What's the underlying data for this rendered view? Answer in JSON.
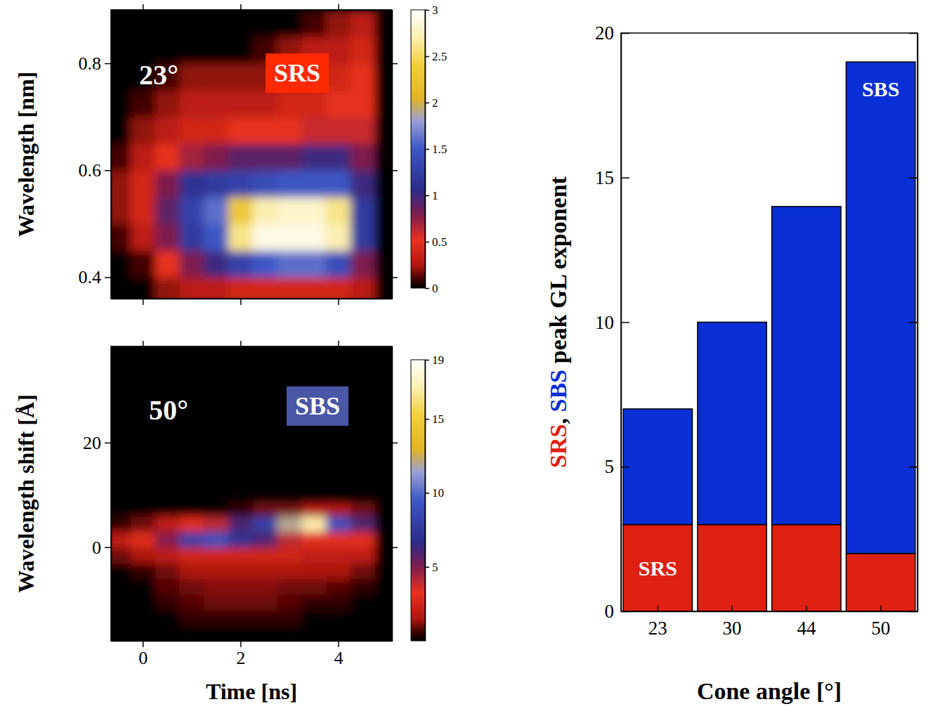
{
  "chart_data": [
    {
      "type": "heatmap",
      "annotations": [
        {
          "text": "23°"
        },
        {
          "text": "SRS",
          "color": "#ff2a00"
        }
      ],
      "y_label": "Wavelength [nm]",
      "x": [
        -0.5,
        0,
        0.5,
        1,
        1.5,
        2,
        2.5,
        3,
        3.5,
        4,
        4.5,
        5
      ],
      "y": [
        0.375,
        0.425,
        0.475,
        0.525,
        0.575,
        0.625,
        0.675,
        0.725,
        0.775,
        0.825,
        0.875
      ],
      "z": [
        [
          0,
          0,
          0.2,
          0.3,
          0.3,
          0.4,
          0.4,
          0.4,
          0.4,
          0.4,
          0.3,
          0
        ],
        [
          0,
          0.1,
          0.5,
          0.8,
          1.0,
          1.3,
          1.5,
          1.6,
          1.6,
          1.4,
          0.8,
          0
        ],
        [
          0.1,
          0.3,
          0.8,
          1.2,
          1.5,
          2.6,
          2.9,
          2.9,
          2.9,
          2.7,
          1.2,
          0
        ],
        [
          0.2,
          0.4,
          0.9,
          1.3,
          1.6,
          2.3,
          2.7,
          2.8,
          2.8,
          2.6,
          1.2,
          0
        ],
        [
          0.2,
          0.4,
          0.8,
          1.1,
          1.2,
          1.3,
          1.4,
          1.5,
          1.5,
          1.5,
          1.0,
          0
        ],
        [
          0.1,
          0.3,
          0.5,
          0.7,
          0.8,
          0.9,
          0.9,
          0.9,
          1.0,
          1.0,
          0.8,
          0
        ],
        [
          0,
          0.2,
          0.3,
          0.4,
          0.4,
          0.5,
          0.5,
          0.5,
          0.6,
          0.6,
          0.6,
          0
        ],
        [
          0,
          0.1,
          0.2,
          0.3,
          0.3,
          0.3,
          0.3,
          0.4,
          0.4,
          0.5,
          0.5,
          0
        ],
        [
          0,
          0,
          0.1,
          0.2,
          0.2,
          0.2,
          0.2,
          0.3,
          0.3,
          0.4,
          0.5,
          0
        ],
        [
          0,
          0,
          0,
          0,
          0,
          0,
          0.1,
          0.2,
          0.3,
          0.3,
          0.4,
          0
        ],
        [
          0,
          0,
          0,
          0,
          0,
          0,
          0,
          0,
          0.1,
          0.2,
          0.3,
          0
        ]
      ],
      "xlim": [
        -0.65,
        5.1
      ],
      "ylim": [
        0.36,
        0.9
      ],
      "xticks": [
        0,
        2,
        4
      ],
      "yticks": [
        0.4,
        0.6,
        0.8
      ],
      "tick_labels": "y",
      "colorbar_range": [
        0,
        3
      ],
      "colorbar_ticks": [
        0,
        0.5,
        1,
        1.5,
        2,
        2.5,
        3
      ]
    },
    {
      "type": "heatmap",
      "annotations": [
        {
          "text": "50°"
        },
        {
          "text": "SBS",
          "color": "#4a56a6"
        }
      ],
      "x_label": "Time [ns]",
      "y_label": "Wavelength shift [Å]",
      "x": [
        -0.5,
        0,
        0.5,
        1,
        1.5,
        2,
        2.5,
        3,
        3.5,
        4,
        4.5,
        5
      ],
      "y": [
        -16.5,
        -13.5,
        -10.5,
        -7.5,
        -4.5,
        -1.5,
        1.5,
        4.5,
        7.5
      ],
      "z": [
        [
          0,
          0,
          0,
          0,
          0,
          0,
          0,
          0,
          0,
          0,
          0,
          0
        ],
        [
          0,
          0,
          0,
          0.5,
          0.5,
          0.5,
          0.5,
          0.5,
          0,
          0,
          0,
          0
        ],
        [
          0,
          0,
          0.5,
          0.8,
          1,
          1,
          1,
          0.8,
          0.5,
          0.5,
          0,
          0
        ],
        [
          0,
          0,
          0.8,
          1,
          1.2,
          1.2,
          1.2,
          1,
          1,
          0.8,
          0.5,
          0
        ],
        [
          0,
          0.5,
          1,
          1.5,
          1.5,
          1.5,
          1.5,
          1.5,
          1.5,
          1.5,
          1,
          0
        ],
        [
          1,
          1.5,
          2,
          2.5,
          2.5,
          2.5,
          2.5,
          2.5,
          2,
          2,
          2,
          0
        ],
        [
          2,
          3,
          5,
          8,
          9,
          7,
          6,
          4,
          3,
          3,
          3,
          0
        ],
        [
          0.5,
          1,
          2,
          3,
          4,
          6,
          8,
          12,
          17,
          9,
          6,
          0
        ],
        [
          0,
          0,
          0,
          0,
          0,
          0.5,
          1,
          1,
          1.5,
          1.5,
          1,
          0
        ]
      ],
      "xlim": [
        -0.65,
        5.1
      ],
      "ylim": [
        -17.9,
        38.4
      ],
      "xticks": [
        0,
        2,
        4
      ],
      "yticks": [
        0,
        20
      ],
      "colorbar_range": [
        0,
        19
      ],
      "colorbar_ticks": [
        5,
        10,
        15,
        19
      ]
    },
    {
      "type": "bar",
      "stacked": true,
      "categories": [
        "23",
        "30",
        "44",
        "50"
      ],
      "series": [
        {
          "name": "SRS",
          "color": "#e02010",
          "values": [
            3,
            3,
            3,
            2
          ]
        },
        {
          "name": "SBS",
          "color": "#0a2fd6",
          "values": [
            4,
            7,
            11,
            17
          ]
        }
      ],
      "x_label": "Cone angle [°]",
      "y_label": "SRS, SBS peak GL exponent",
      "ylim": [
        0,
        20
      ],
      "yticks": [
        0,
        5,
        10,
        15,
        20
      ]
    }
  ]
}
